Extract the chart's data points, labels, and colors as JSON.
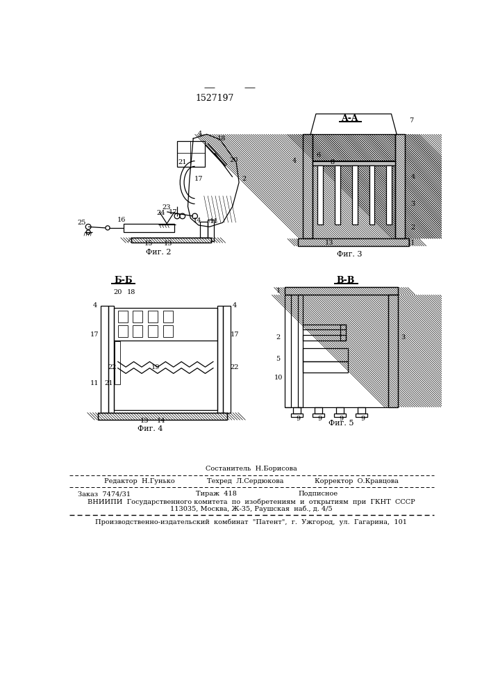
{
  "patent_number": "1527197",
  "background_color": "#ffffff",
  "line_color": "#000000",
  "fig_width": 7.07,
  "fig_height": 10.0,
  "section_labels": {
    "AA": "A-A",
    "BB": "Б-Б",
    "VV": "В-В"
  },
  "fig_captions": {
    "fig2": "Фиг. 2",
    "fig3": "Фиг. 3",
    "fig4": "Фиг. 4",
    "fig5": "Фиг. 5"
  },
  "footer": {
    "sestavitel": "Состанитель  Н.Борисова",
    "redaktor": "Редактор  Н.Гунько",
    "tehred": "Техред  Л.Сердюкова",
    "korrektor": "Корректор  О.Кравцова",
    "zakaz": "Заказ  7474/31",
    "tirazh": "Тираж  418",
    "podpisnoe": "Подписное",
    "vniipи": "ВНИИПИ  Государственного комитета  по  изобретениям  и  открытиям  при  ГКНТ  СССР",
    "address": "113035, Москва, Ж-35, Раушская  наб., д. 4/5",
    "patent_firm": "Производственно-издательский  комбинат  \"Патент\",  г.  Ужгород,  ул.  Гагарина,  101"
  }
}
